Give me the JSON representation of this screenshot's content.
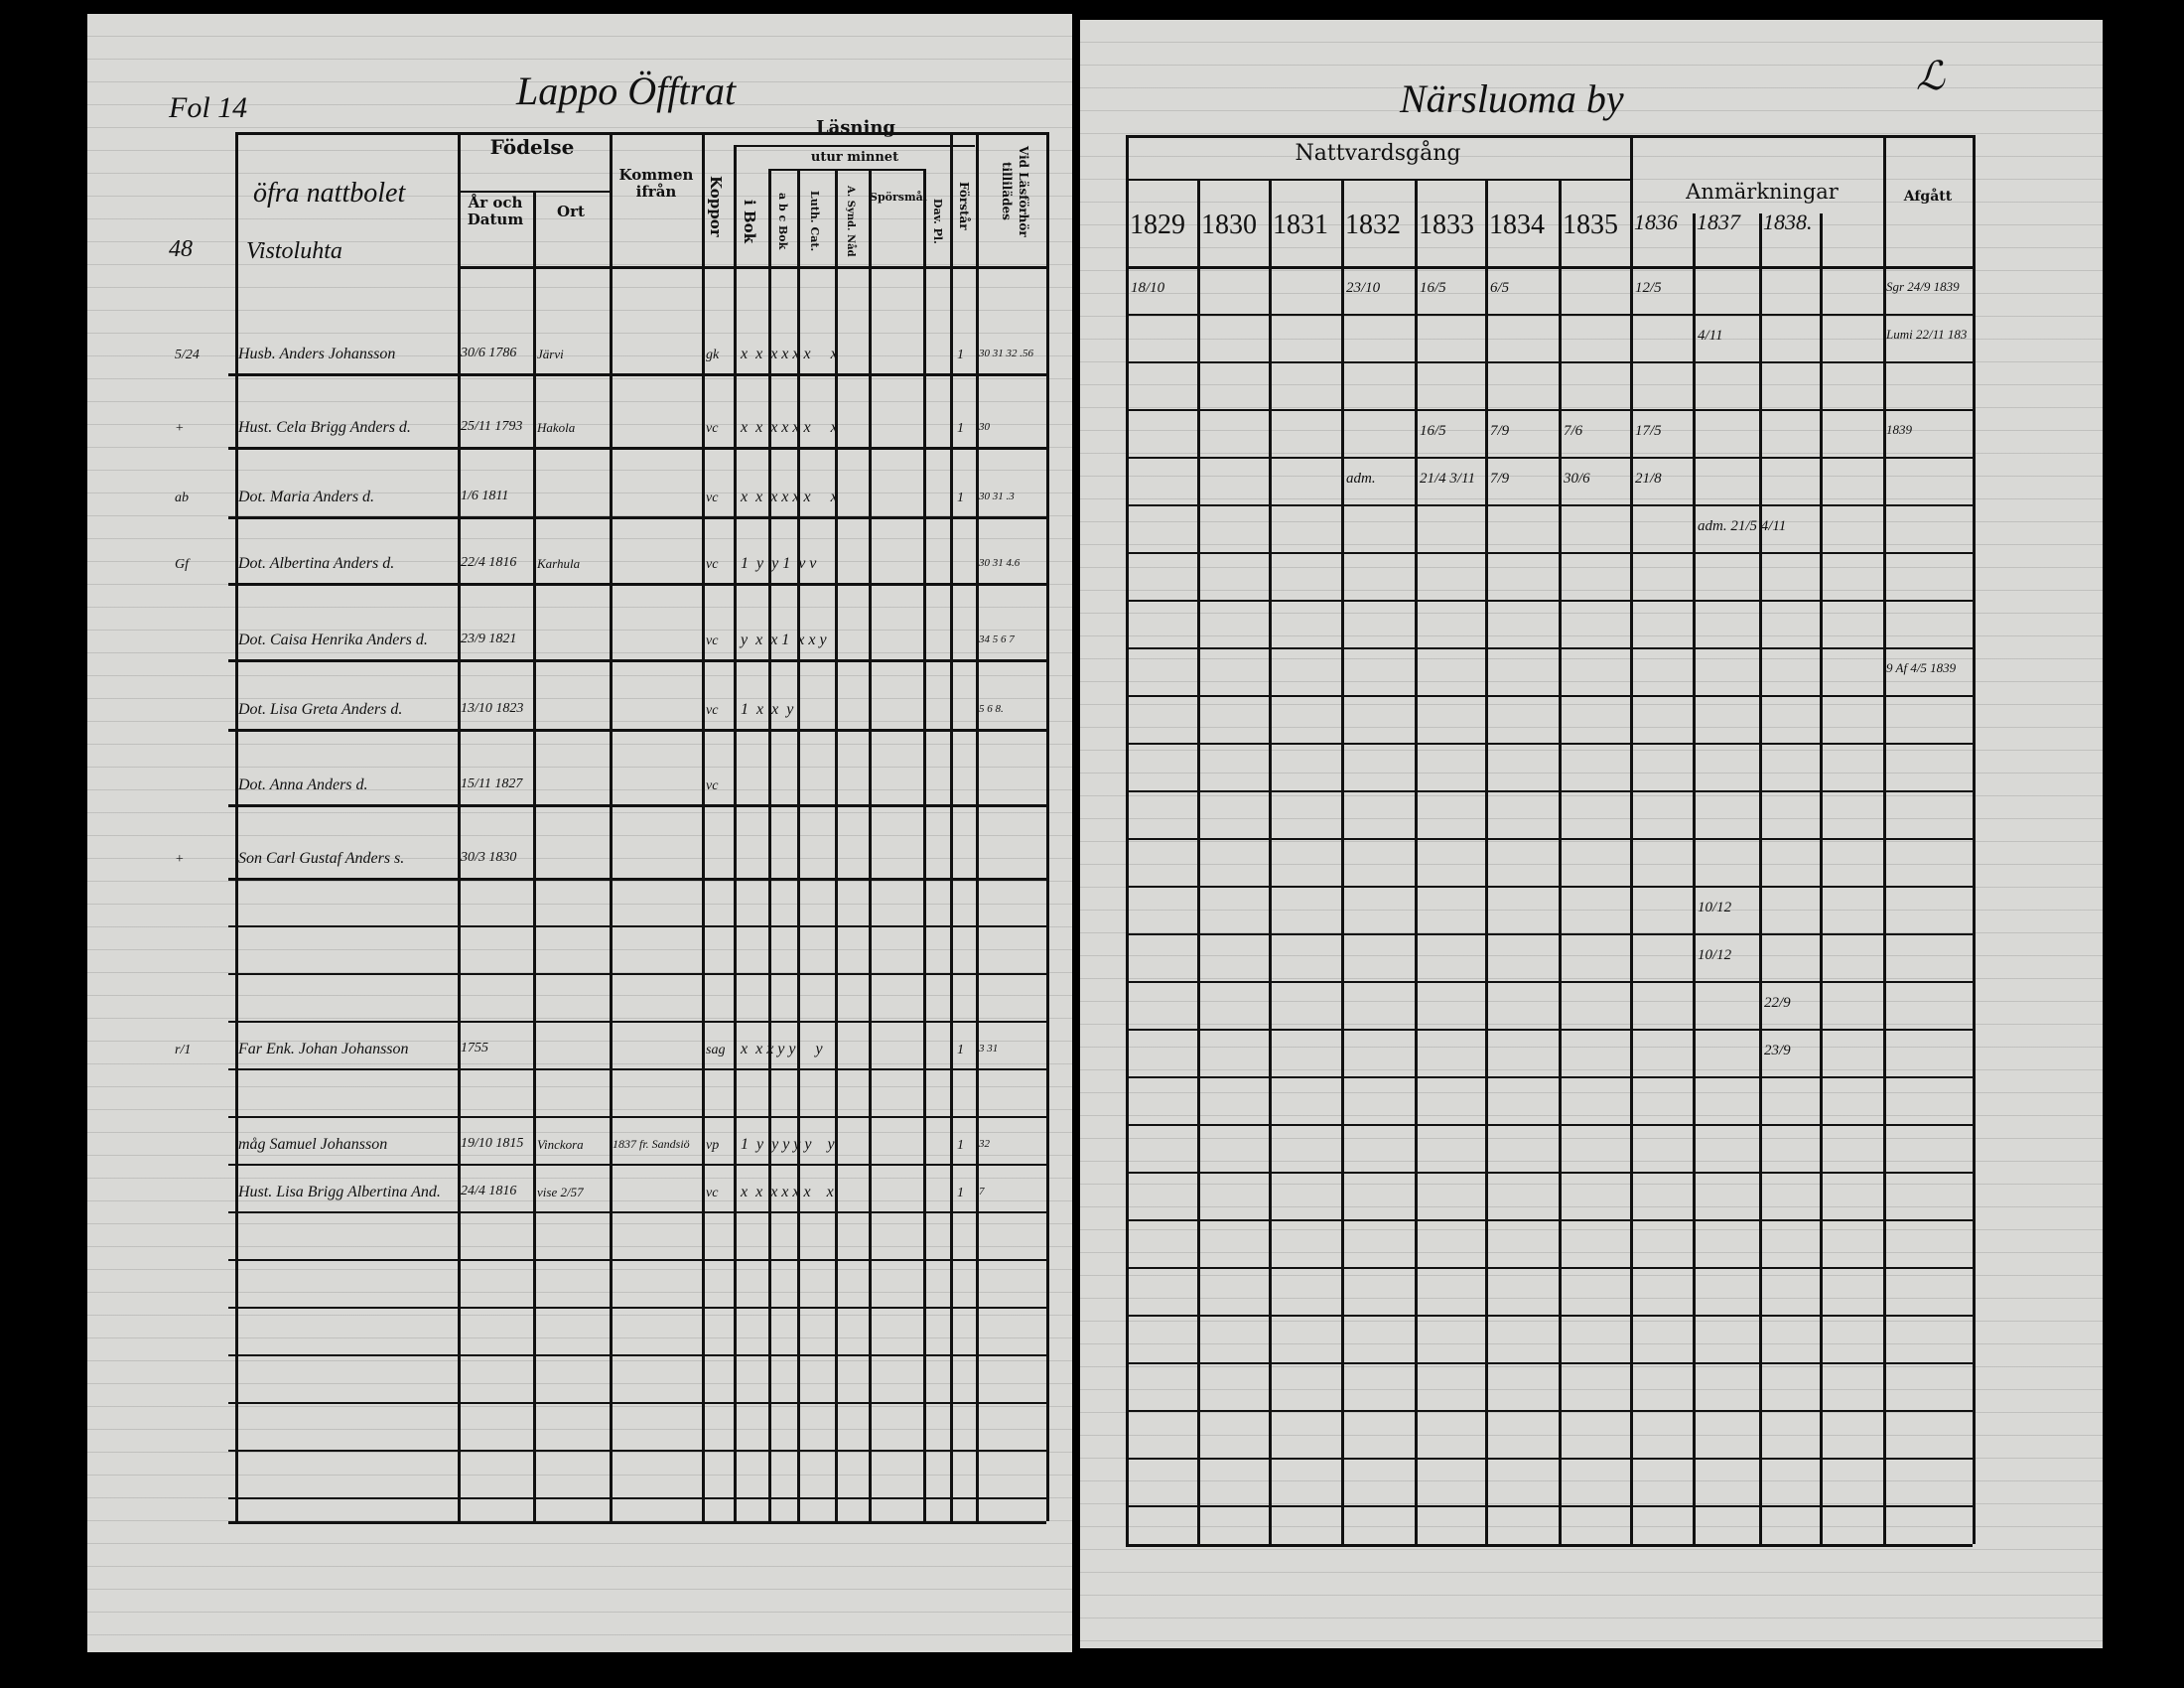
{
  "left_page": {
    "folio": "Fol 14",
    "heading": "Lappo Öfftrat",
    "margin_number": "48",
    "column_headers": {
      "name": "öfra nattbolet",
      "fodelse": "Födelse",
      "ar_och_datum": "År och Datum",
      "ort": "Ort",
      "kommen_ifran": "Kommen ifrån",
      "koppor": "Koppor",
      "lasning": "Läsning",
      "utur_minnet": "utur minnet",
      "i_bok": "i Bok",
      "abc_bok": "a b c Bok",
      "luth_cat": "Luth. Cat.",
      "a_synd": "A. Synd. Nåd",
      "sporsmal": "Spörsmål",
      "dav_pl": "Dav. Pl.",
      "forstar": "Förstår",
      "vid_lasforhor": "Vid Läsförhör tillilädes"
    },
    "house_name": "Vistoluhta",
    "rows": [
      {
        "margin": "5/24",
        "name": "Husb. Anders Johansson",
        "date": "30/6 1786",
        "place": "Järvi",
        "koppor": "gk",
        "marks": "x  x  x x x x     x",
        "forstar": "1",
        "lasforhor": "30 31 32 .56"
      },
      {
        "margin": "+",
        "name": "Hust. Cela Brigg Anders d.",
        "date": "25/11 1793",
        "place": "Hakola",
        "koppor": "vc",
        "marks": "x  x  x x x x     x",
        "forstar": "1",
        "lasforhor": "30"
      },
      {
        "margin": "ab",
        "name": "Dot. Maria Anders d.",
        "date": "1/6 1811",
        "place": "",
        "koppor": "vc",
        "marks": "x  x  x x x x     x",
        "forstar": "1",
        "lasforhor": "30 31 .3"
      },
      {
        "margin": "Gf",
        "name": "Dot. Albertina Anders d.",
        "date": "22/4 1816",
        "place": "Karhula",
        "koppor": "vc",
        "marks": "1  y  y 1  v v",
        "forstar": "",
        "lasforhor": "30 31 4.6"
      },
      {
        "margin": "",
        "name": "Dot. Caisa Henrika Anders d.",
        "date": "23/9 1821",
        "place": "",
        "koppor": "vc",
        "marks": "y  x  x 1  x x y",
        "forstar": "",
        "lasforhor": "34 5 6 7"
      },
      {
        "margin": "",
        "name": "Dot. Lisa Greta Anders d.",
        "date": "13/10 1823",
        "place": "",
        "koppor": "vc",
        "marks": "1  x  x  y",
        "forstar": "",
        "lasforhor": "5 6 8."
      },
      {
        "margin": "",
        "name": "Dot. Anna Anders d.",
        "date": "15/11 1827",
        "place": "",
        "koppor": "vc",
        "marks": "",
        "forstar": "",
        "lasforhor": ""
      },
      {
        "margin": "+",
        "name": "Son Carl Gustaf Anders s.",
        "date": "30/3 1830",
        "place": "",
        "koppor": "",
        "marks": "",
        "forstar": "",
        "lasforhor": ""
      }
    ],
    "lower_rows": [
      {
        "margin": "r/1",
        "name": "Far Enk. Johan Johansson",
        "date": "1755",
        "place": "",
        "from": "",
        "koppor": "sag",
        "marks": "x  x x y y     y",
        "forstar": "1",
        "lasforhor": "3 31"
      },
      {
        "margin": "",
        "name": "måg Samuel Johansson",
        "date": "19/10 1815",
        "place": "Vinckora",
        "from": "1837 fr. Sandsiö",
        "koppor": "vp",
        "marks": "1  y  y y y y    y",
        "forstar": "1",
        "lasforhor": "32"
      },
      {
        "margin": "",
        "name": "Hust. Lisa Brigg Albertina And.",
        "date": "24/4 1816",
        "place": "vise 2/57",
        "from": "",
        "koppor": "vc",
        "marks": "x  x  x x x x    x",
        "forstar": "1",
        "lasforhor": "7"
      }
    ]
  },
  "right_page": {
    "heading": "Närsluoma by",
    "corner_mark": "ℒ",
    "column_headers": {
      "nattvardsgang": "Nattvardsgång",
      "anmarkningar": "Anmärkningar",
      "afgatt": "Afgått"
    },
    "years": [
      "1829",
      "1830",
      "1831",
      "1832",
      "1833",
      "1834",
      "1835",
      "1836",
      "1837",
      "1838."
    ],
    "entries": [
      {
        "row": 0,
        "col": 0,
        "text": "18/10"
      },
      {
        "row": 0,
        "col": 3,
        "text": "23/10"
      },
      {
        "row": 0,
        "col": 4,
        "text": "16/5"
      },
      {
        "row": 0,
        "col": 5,
        "text": "6/5"
      },
      {
        "row": 0,
        "col": 7,
        "text": "12/5"
      },
      {
        "row": 1,
        "col": 8,
        "text": "4/11"
      },
      {
        "row": 3,
        "col": 4,
        "text": "16/5"
      },
      {
        "row": 3,
        "col": 5,
        "text": "7/9"
      },
      {
        "row": 3,
        "col": 6,
        "text": "7/6"
      },
      {
        "row": 3,
        "col": 7,
        "text": "17/5"
      },
      {
        "row": 4,
        "col": 3,
        "text": "adm."
      },
      {
        "row": 4,
        "col": 4,
        "text": "21/4  3/11"
      },
      {
        "row": 4,
        "col": 5,
        "text": "7/9"
      },
      {
        "row": 4,
        "col": 6,
        "text": "30/6"
      },
      {
        "row": 4,
        "col": 7,
        "text": "21/8"
      },
      {
        "row": 5,
        "col": 8,
        "text": "adm. 21/5  4/11"
      },
      {
        "row": 13,
        "col": 8,
        "text": "10/12"
      },
      {
        "row": 14,
        "col": 8,
        "text": "10/12"
      },
      {
        "row": 15,
        "col": 9,
        "text": "22/9"
      },
      {
        "row": 16,
        "col": 9,
        "text": "23/9"
      }
    ],
    "afgatt_notes": [
      "Sgr 24/9 1839",
      "Lumi 22/11 183",
      "1839",
      "9 Af 4/5 1839"
    ]
  }
}
